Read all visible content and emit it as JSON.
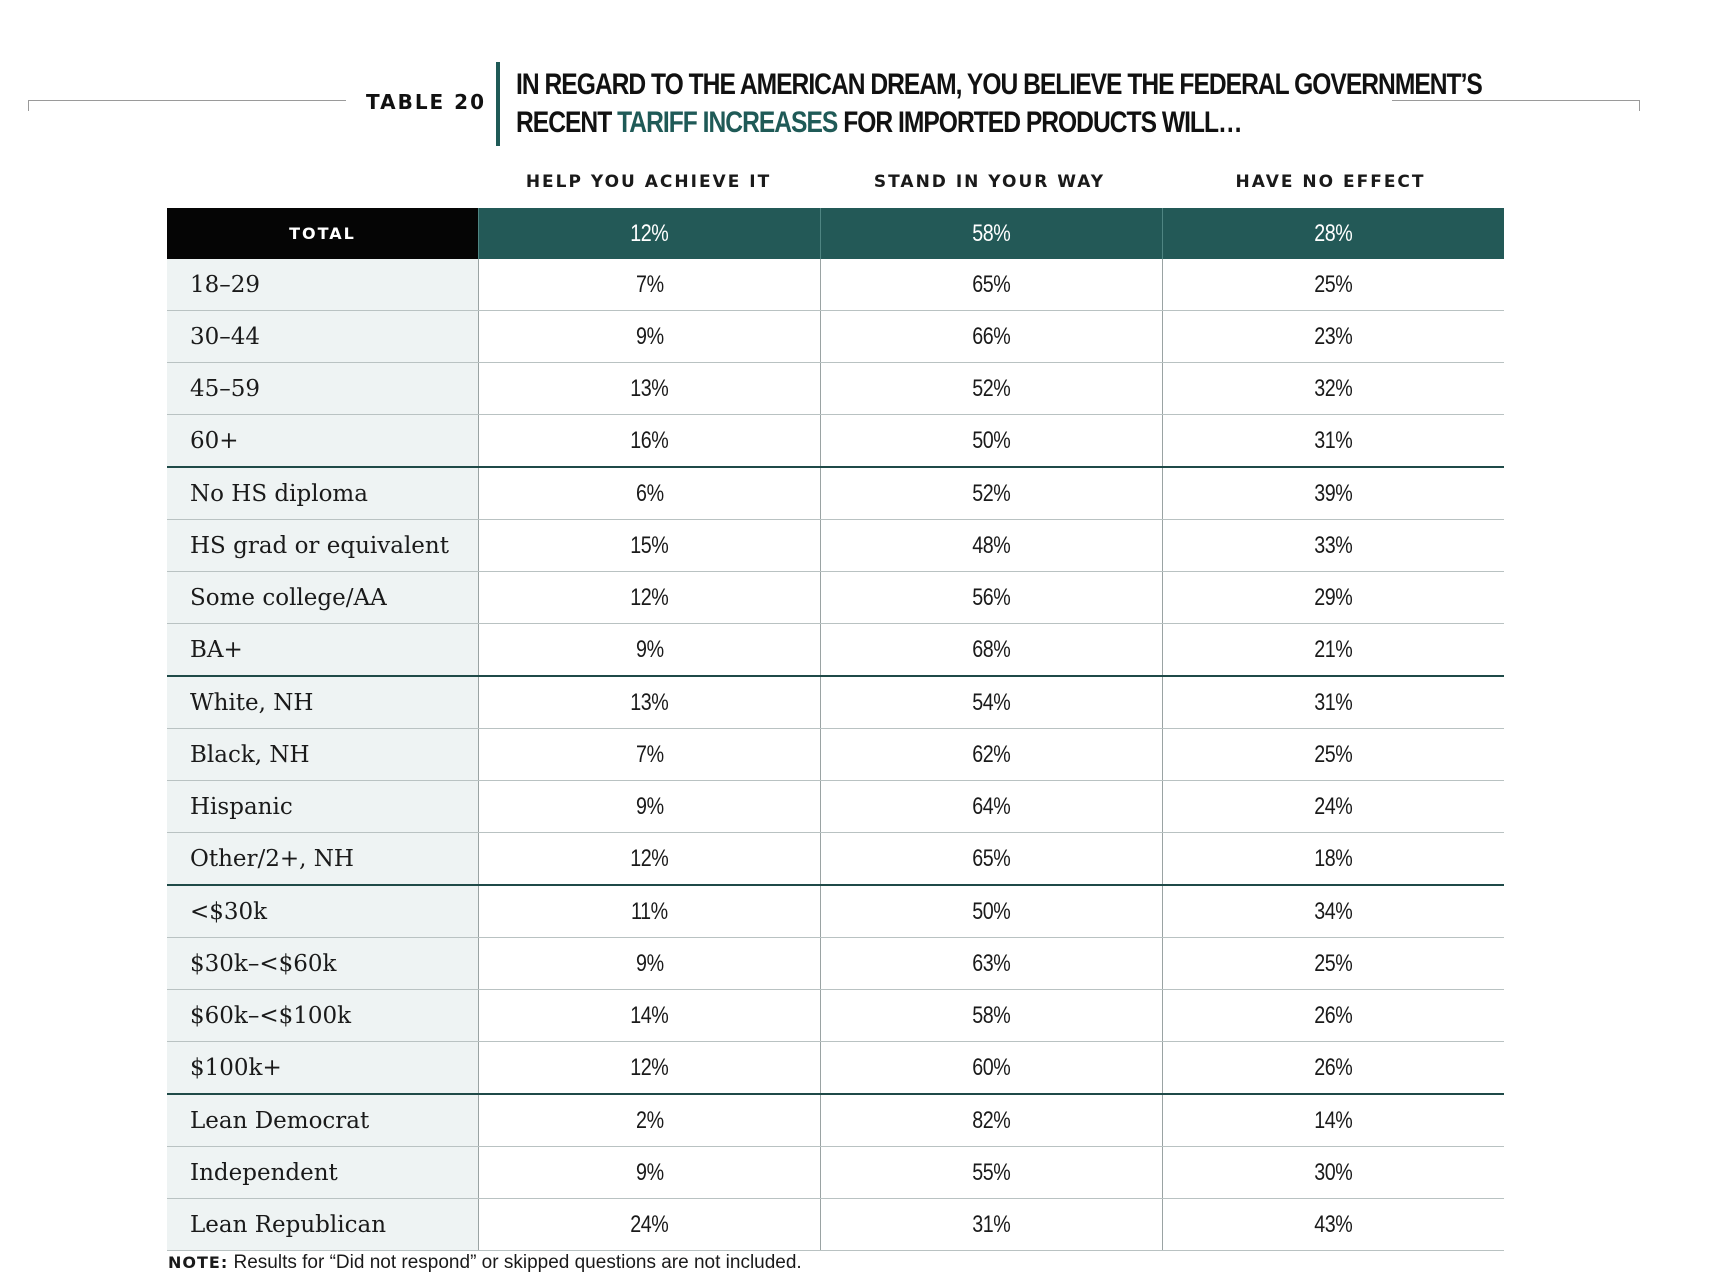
{
  "header": {
    "table_number": "TABLE 20",
    "title_line1": "IN REGARD TO THE AMERICAN DREAM, YOU BELIEVE THE FEDERAL GOVERNMENT’S",
    "title_line2_prefix": "RECENT ",
    "title_line2_accent": "TARIFF INCREASES",
    "title_line2_suffix": " FOR IMPORTED PRODUCTS WILL…"
  },
  "columns": [
    "HELP YOU ACHIEVE IT",
    "STAND IN YOUR WAY",
    "HAVE NO EFFECT"
  ],
  "total": {
    "label": "TOTAL",
    "values": [
      "12%",
      "58%",
      "28%"
    ]
  },
  "rows": [
    {
      "label": "18–29",
      "values": [
        "7%",
        "65%",
        "25%"
      ]
    },
    {
      "label": "30–44",
      "values": [
        "9%",
        "66%",
        "23%"
      ]
    },
    {
      "label": "45–59",
      "values": [
        "13%",
        "52%",
        "32%"
      ]
    },
    {
      "label": "60+",
      "values": [
        "16%",
        "50%",
        "31%"
      ]
    },
    {
      "label": "No HS diploma",
      "values": [
        "6%",
        "52%",
        "39%"
      ]
    },
    {
      "label": "HS grad or equivalent",
      "values": [
        "15%",
        "48%",
        "33%"
      ]
    },
    {
      "label": "Some college/AA",
      "values": [
        "12%",
        "56%",
        "29%"
      ]
    },
    {
      "label": "BA+",
      "values": [
        "9%",
        "68%",
        "21%"
      ]
    },
    {
      "label": "White, NH",
      "values": [
        "13%",
        "54%",
        "31%"
      ]
    },
    {
      "label": "Black, NH",
      "values": [
        "7%",
        "62%",
        "25%"
      ]
    },
    {
      "label": "Hispanic",
      "values": [
        "9%",
        "64%",
        "24%"
      ]
    },
    {
      "label": "Other/2+, NH",
      "values": [
        "12%",
        "65%",
        "18%"
      ]
    },
    {
      "label": "<$30k",
      "values": [
        "11%",
        "50%",
        "34%"
      ]
    },
    {
      "label": "$30k–<$60k",
      "values": [
        "9%",
        "63%",
        "25%"
      ]
    },
    {
      "label": "$60k–<$100k",
      "values": [
        "14%",
        "58%",
        "26%"
      ]
    },
    {
      "label": "$100k+",
      "values": [
        "12%",
        "60%",
        "26%"
      ]
    },
    {
      "label": "Lean Democrat",
      "values": [
        "2%",
        "82%",
        "14%"
      ]
    },
    {
      "label": "Independent",
      "values": [
        "9%",
        "55%",
        "30%"
      ]
    },
    {
      "label": "Lean Republican",
      "values": [
        "24%",
        "31%",
        "43%"
      ]
    }
  ],
  "note": {
    "label": "NOTE:",
    "text": " Results for “Did not respond” or skipped questions are not included."
  },
  "colors": {
    "accent": "#1f5a57",
    "total_row_bg": "#235957",
    "total_label_bg": "#050505",
    "label_cell_bg": "#eef3f3"
  }
}
